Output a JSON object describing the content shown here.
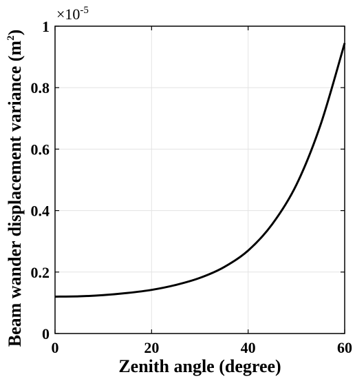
{
  "chart_data": {
    "type": "line",
    "xlabel": "Zenith angle (degree)",
    "ylabel_main": "Beam wander displacement variance (m",
    "ylabel_sup": "2",
    "ylabel_close": ")",
    "y_exponent_base": "×10",
    "y_exponent_power": "-5",
    "xlim": [
      0,
      60
    ],
    "ylim": [
      0,
      1
    ],
    "xticks": [
      0,
      20,
      40,
      60
    ],
    "xtick_labels": [
      "0",
      "20",
      "40",
      "60"
    ],
    "yticks": [
      0,
      0.2,
      0.4,
      0.6,
      0.8,
      1
    ],
    "ytick_labels": [
      "0",
      "0.2",
      "0.4",
      "0.6",
      "0.8",
      "1"
    ],
    "grid": true,
    "series": [
      {
        "color": "#000000",
        "x": [
          0,
          5,
          10,
          15,
          20,
          25,
          30,
          35,
          40,
          45,
          50,
          55,
          60
        ],
        "y": [
          0.12,
          0.121,
          0.125,
          0.132,
          0.142,
          0.158,
          0.181,
          0.216,
          0.27,
          0.356,
          0.484,
          0.679,
          0.945
        ]
      }
    ]
  }
}
